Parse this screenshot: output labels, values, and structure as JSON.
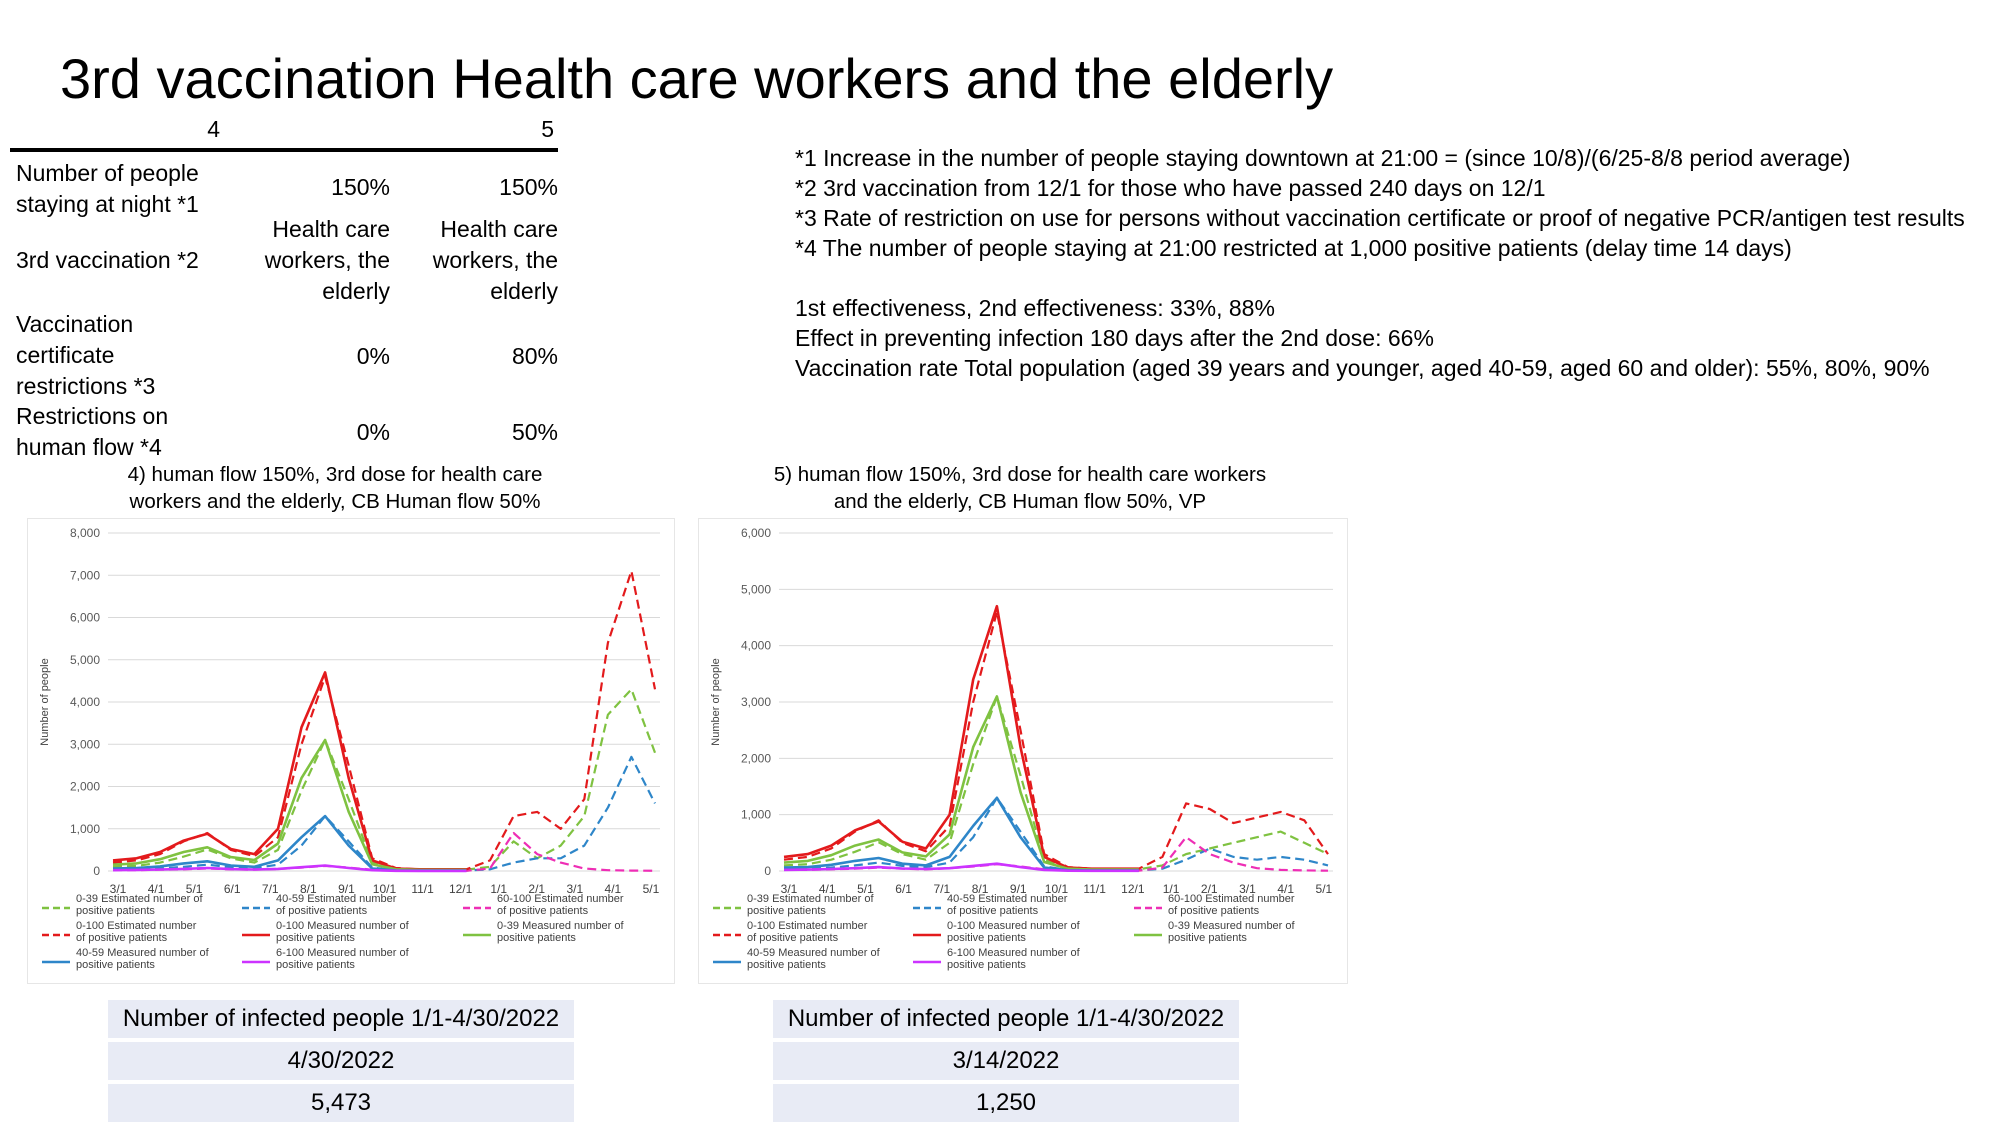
{
  "title": "3rd vaccination Health care workers and the elderly",
  "params_table": {
    "col_headers": [
      "4",
      "5"
    ],
    "rows": [
      {
        "label": "Number of people staying at night *1",
        "v4": "150%",
        "v5": "150%"
      },
      {
        "label": "3rd vaccination *2",
        "v4": "Health care workers, the elderly",
        "v5": "Health care workers, the elderly"
      },
      {
        "label": "Vaccination certificate restrictions *3",
        "v4": "0%",
        "v5": "80%"
      },
      {
        "label": "Restrictions on human flow *4",
        "v4": "0%",
        "v5": "50%"
      }
    ]
  },
  "notes": [
    "*1 Increase in the number of people staying downtown at 21:00 = (since 10/8)/(6/25-8/8 period average)",
    "*2 3rd vaccination from 12/1 for those who have passed 240 days on 12/1",
    "*3 Rate of restriction on use for persons without vaccination certificate or proof of negative PCR/antigen test results",
    "*4 The number of people staying at 21:00 restricted at 1,000 positive patients (delay time 14 days)",
    "",
    "1st effectiveness, 2nd effectiveness: 33%, 88%",
    "Effect in preventing infection 180 days after the 2nd dose: 66%",
    "Vaccination rate Total population (aged 39 years and younger, aged 40-59, aged 60 and older): 55%, 80%, 90%"
  ],
  "chart_titles": [
    "4) human flow 150%, 3rd dose for health care workers and the elderly, CB Human flow 50%",
    "5) human flow 150%, 3rd dose for health care workers and the elderly, CB Human flow 50%, VP"
  ],
  "chart_data": [
    {
      "type": "line",
      "ylabel": "Number of people",
      "ylim": [
        0,
        8000
      ],
      "yticks": [
        "0",
        "1,000",
        "2,000",
        "3,000",
        "4,000",
        "5,000",
        "6,000",
        "7,000",
        "8,000"
      ],
      "xticks": [
        "3/1",
        "4/1",
        "5/1",
        "6/1",
        "7/1",
        "8/1",
        "9/1",
        "10/1",
        "11/1",
        "12/1",
        "1/1",
        "2/1",
        "3/1",
        "4/1",
        "5/1"
      ],
      "grid": true,
      "legend_position": "bottom",
      "series": [
        {
          "name": "0-39 Estimated number of positive patients",
          "color": "#7fc241",
          "dash": true,
          "values": [
            100,
            120,
            200,
            340,
            510,
            300,
            200,
            500,
            1900,
            3100,
            1700,
            200,
            50,
            30,
            30,
            30,
            100,
            700,
            300,
            600,
            1300,
            3700,
            4300,
            2800
          ]
        },
        {
          "name": "40-59 Estimated number of positive patients",
          "color": "#2e86c9",
          "dash": true,
          "values": [
            30,
            40,
            60,
            100,
            150,
            90,
            70,
            150,
            600,
            1300,
            700,
            80,
            20,
            10,
            10,
            10,
            40,
            200,
            300,
            300,
            600,
            1500,
            2700,
            1600
          ]
        },
        {
          "name": "60-100 Estimated number of positive patients",
          "color": "#ee2eb5",
          "dash": true,
          "values": [
            20,
            20,
            30,
            40,
            60,
            40,
            30,
            50,
            80,
            120,
            80,
            30,
            10,
            5,
            5,
            5,
            60,
            900,
            400,
            200,
            60,
            20,
            10,
            5
          ]
        },
        {
          "name": "0-100 Estimated number of positive patients",
          "color": "#e31a1c",
          "dash": true,
          "values": [
            200,
            250,
            400,
            700,
            900,
            500,
            350,
            800,
            3000,
            4600,
            2500,
            300,
            70,
            40,
            40,
            40,
            250,
            1300,
            1400,
            1000,
            1700,
            5400,
            7100,
            4300
          ]
        },
        {
          "name": "0-100 Measured number of positive patients",
          "color": "#e31a1c",
          "dash": false,
          "values": [
            250,
            300,
            450,
            720,
            880,
            520,
            400,
            1000,
            3400,
            4700,
            2200,
            250,
            60,
            40,
            40,
            40,
            null,
            null,
            null,
            null,
            null,
            null,
            null,
            null
          ]
        },
        {
          "name": "0-39 Measured number of positive patients",
          "color": "#7fc241",
          "dash": false,
          "values": [
            150,
            180,
            280,
            450,
            560,
            330,
            260,
            650,
            2200,
            3100,
            1400,
            160,
            40,
            25,
            25,
            25,
            null,
            null,
            null,
            null,
            null,
            null,
            null,
            null
          ]
        },
        {
          "name": "40-59 Measured number of positive patients",
          "color": "#2e86c9",
          "dash": false,
          "values": [
            60,
            70,
            110,
            180,
            230,
            130,
            100,
            250,
            800,
            1300,
            600,
            60,
            15,
            10,
            10,
            10,
            null,
            null,
            null,
            null,
            null,
            null,
            null,
            null
          ]
        },
        {
          "name": "6-100 Measured number of positive patients",
          "color": "#cc33ff",
          "dash": false,
          "values": [
            20,
            25,
            35,
            50,
            70,
            45,
            35,
            50,
            90,
            130,
            70,
            20,
            5,
            3,
            3,
            3,
            null,
            null,
            null,
            null,
            null,
            null,
            null,
            null
          ]
        }
      ]
    },
    {
      "type": "line",
      "ylabel": "Number of people",
      "ylim": [
        0,
        6000
      ],
      "yticks": [
        "0",
        "1,000",
        "2,000",
        "3,000",
        "4,000",
        "5,000",
        "6,000"
      ],
      "xticks": [
        "3/1",
        "4/1",
        "5/1",
        "6/1",
        "7/1",
        "8/1",
        "9/1",
        "10/1",
        "11/1",
        "12/1",
        "1/1",
        "2/1",
        "3/1",
        "4/1",
        "5/1"
      ],
      "grid": true,
      "legend_position": "bottom",
      "series": [
        {
          "name": "0-39 Estimated number of positive patients",
          "color": "#7fc241",
          "dash": true,
          "values": [
            100,
            120,
            200,
            340,
            510,
            300,
            200,
            500,
            1900,
            3100,
            1700,
            200,
            50,
            30,
            30,
            30,
            100,
            300,
            400,
            500,
            600,
            700,
            500,
            300
          ]
        },
        {
          "name": "40-59 Estimated number of positive patients",
          "color": "#2e86c9",
          "dash": true,
          "values": [
            30,
            40,
            60,
            100,
            150,
            90,
            70,
            150,
            600,
            1300,
            700,
            80,
            20,
            10,
            10,
            10,
            40,
            200,
            400,
            250,
            200,
            250,
            200,
            100
          ]
        },
        {
          "name": "60-100 Estimated number of positive patients",
          "color": "#ee2eb5",
          "dash": true,
          "values": [
            20,
            20,
            30,
            40,
            60,
            40,
            30,
            50,
            80,
            120,
            80,
            30,
            10,
            5,
            5,
            5,
            60,
            600,
            300,
            150,
            50,
            20,
            10,
            5
          ]
        },
        {
          "name": "0-100 Estimated number of positive patients",
          "color": "#e31a1c",
          "dash": true,
          "values": [
            200,
            250,
            400,
            700,
            900,
            500,
            350,
            800,
            3000,
            4600,
            2500,
            300,
            70,
            40,
            40,
            40,
            250,
            1200,
            1100,
            850,
            950,
            1050,
            900,
            300
          ]
        },
        {
          "name": "0-100 Measured number of positive patients",
          "color": "#e31a1c",
          "dash": false,
          "values": [
            250,
            300,
            450,
            720,
            880,
            520,
            400,
            1000,
            3400,
            4700,
            2200,
            250,
            60,
            40,
            40,
            40,
            null,
            null,
            null,
            null,
            null,
            null,
            null,
            null
          ]
        },
        {
          "name": "0-39 Measured number of positive patients",
          "color": "#7fc241",
          "dash": false,
          "values": [
            150,
            180,
            280,
            450,
            560,
            330,
            260,
            650,
            2200,
            3100,
            1400,
            160,
            40,
            25,
            25,
            25,
            null,
            null,
            null,
            null,
            null,
            null,
            null,
            null
          ]
        },
        {
          "name": "40-59 Measured number of positive patients",
          "color": "#2e86c9",
          "dash": false,
          "values": [
            60,
            70,
            110,
            180,
            230,
            130,
            100,
            250,
            800,
            1300,
            600,
            60,
            15,
            10,
            10,
            10,
            null,
            null,
            null,
            null,
            null,
            null,
            null,
            null
          ]
        },
        {
          "name": "6-100 Measured number of positive patients",
          "color": "#cc33ff",
          "dash": false,
          "values": [
            20,
            25,
            35,
            50,
            70,
            45,
            35,
            50,
            90,
            130,
            70,
            20,
            5,
            3,
            3,
            3,
            null,
            null,
            null,
            null,
            null,
            null,
            null,
            null
          ]
        }
      ]
    }
  ],
  "infected_boxes": [
    {
      "header": "Number of infected people 1/1-4/30/2022",
      "date": "4/30/2022",
      "count": "5,473"
    },
    {
      "header": "Number of infected people 1/1-4/30/2022",
      "date": "3/14/2022",
      "count": "1,250"
    }
  ]
}
